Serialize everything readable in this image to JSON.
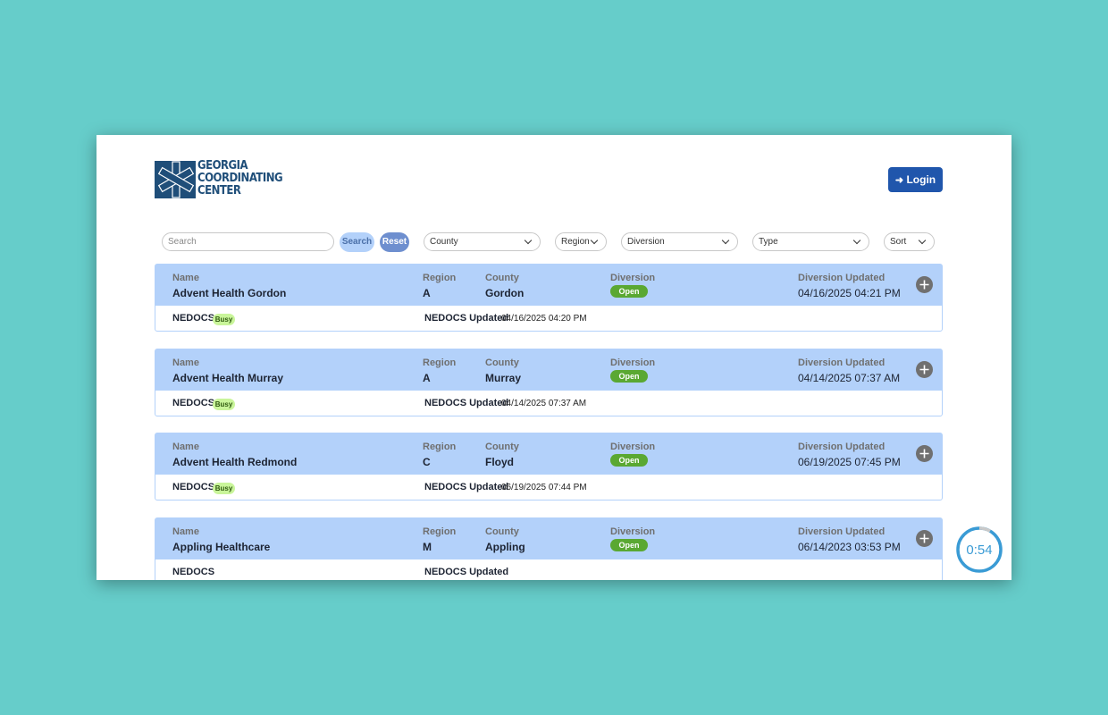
{
  "header": {
    "logo_lines": [
      "GEORGIA",
      "COORDINATING",
      "CENTER"
    ],
    "login": "Login"
  },
  "filters": {
    "search_placeholder": "Search",
    "search_button": "Search",
    "reset_button": "Reset",
    "selects": [
      "County",
      "Region",
      "Diversion",
      "Type",
      "Sort"
    ]
  },
  "labels": {
    "name": "Name",
    "region": "Region",
    "county": "County",
    "diversion": "Diversion",
    "diversion_updated": "Diversion Updated",
    "nedocs": "NEDOCS",
    "nedocs_updated": "NEDOCS Updated"
  },
  "facilities": [
    {
      "name": "Advent Health Gordon",
      "region": "A",
      "county": "Gordon",
      "diversion": "Open",
      "diversion_updated": "04/16/2025 04:21 PM",
      "nedocs": "Busy",
      "nedocs_updated": "04/16/2025 04:20 PM"
    },
    {
      "name": "Advent Health Murray",
      "region": "A",
      "county": "Murray",
      "diversion": "Open",
      "diversion_updated": "04/14/2025 07:37 AM",
      "nedocs": "Busy",
      "nedocs_updated": "04/14/2025 07:37 AM"
    },
    {
      "name": "Advent Health Redmond",
      "region": "C",
      "county": "Floyd",
      "diversion": "Open",
      "diversion_updated": "06/19/2025 07:45 PM",
      "nedocs": "Busy",
      "nedocs_updated": "06/19/2025 07:44 PM"
    },
    {
      "name": "Appling Healthcare",
      "region": "M",
      "county": "Appling",
      "diversion": "Open",
      "diversion_updated": "06/14/2023 03:53 PM"
    }
  ],
  "timer": "0:54"
}
